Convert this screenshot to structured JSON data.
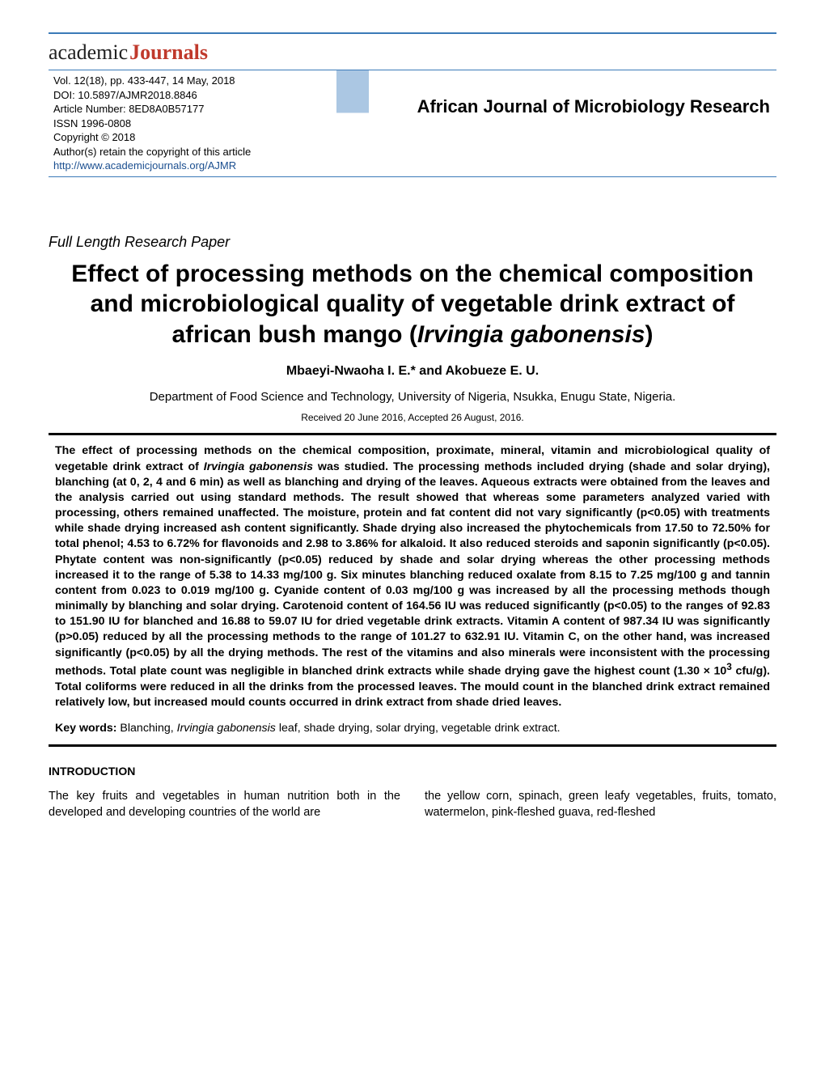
{
  "logo": {
    "part1": "academic",
    "part2": "Journals"
  },
  "header": {
    "meta": {
      "vol_line": "Vol. 12(18), pp. 433-447, 14 May, 2018",
      "doi_line": "DOI: 10.5897/AJMR2018.8846",
      "article_number": "Article Number: 8ED8A0B57177",
      "issn": "ISSN 1996-0808",
      "copyright": "Copyright © 2018",
      "authors_retain": "Author(s) retain the copyright of this article",
      "url": "http://www.academicjournals.org/AJMR"
    },
    "journal_title": "African Journal of Microbiology Research"
  },
  "article": {
    "type": "Full Length Research Paper",
    "title_plain_1": "Effect of processing methods on the chemical composition and microbiological quality of vegetable drink extract of african bush mango (",
    "title_italic": "Irvingia gabonensis",
    "title_plain_2": ")",
    "authors": "Mbaeyi-Nwaoha I. E.* and Akobueze E. U.",
    "affiliation": "Department of Food Science and Technology, University of Nigeria, Nsukka, Enugu State, Nigeria.",
    "dates": "Received 20 June 2016, Accepted 26 August, 2016."
  },
  "abstract": {
    "p1a": "The effect of processing methods on the chemical composition, proximate, mineral, vitamin and microbiological quality of vegetable drink extract of ",
    "p1_it1": "Irvingia gabonensis",
    "p1b": " was studied. The processing methods included drying (shade and solar drying), blanching (at 0, 2, 4 and 6 min) as well as blanching and drying of the leaves. Aqueous extracts were obtained from the leaves and the analysis carried out using standard methods. The result showed that whereas some parameters analyzed varied with processing, others remained unaffected. The moisture, protein and fat content did not vary significantly (p<0.05) with treatments while shade drying increased ash content significantly. Shade drying also increased the phytochemicals from 17.50 to 72.50% for total phenol; 4.53 to 6.72% for flavonoids and 2.98 to 3.86% for alkaloid. It also reduced steroids and saponin significantly (p<0.05). Phytate content was non-significantly (p<0.05) reduced by shade and solar drying whereas the other processing methods increased it to the range of 5.38 to 14.33 mg/100 g. Six minutes blanching reduced oxalate from 8.15 to 7.25 mg/100 g and tannin content from 0.023 to 0.019 mg/100 g. Cyanide content of 0.03 mg/100 g was increased by all the processing methods though minimally by blanching and solar drying. Carotenoid content of 164.56 IU was reduced significantly (p<0.05) to the ranges of 92.83 to 151.90 IU for blanched and 16.88 to 59.07 IU for dried vegetable drink extracts. Vitamin A content of 987.34 IU was significantly (p>0.05) reduced by all the processing methods to the range of 101.27 to 632.91 IU. Vitamin C, on the other hand, was increased significantly (p<0.05) by all the drying methods. The rest of the vitamins and also minerals were inconsistent with the processing methods. Total plate count was negligible in blanched drink extracts while shade drying gave the highest count (1.30 × 10",
    "p1_sup": "3",
    "p1c": " cfu/g). Total coliforms were reduced in all the drinks from the processed leaves. The mould count in the blanched drink extract remained relatively low, but increased mould counts occurred in drink extract from shade dried leaves."
  },
  "keywords": {
    "label": "Key words: ",
    "t1": "Blanching, ",
    "it": "Irvingia gabonensis",
    "t2": " leaf, shade drying, solar drying, vegetable drink extract."
  },
  "intro": {
    "heading": "INTRODUCTION",
    "col1": "The key fruits and vegetables in human nutrition both in the developed and developing countries of the  world  are",
    "col2": "the yellow corn, spinach, green leafy vegetables, fruits, tomato, watermelon, pink-fleshed guava, red-fleshed"
  },
  "colors": {
    "rule_blue": "#3a7ab8",
    "logo_red": "#c0392b",
    "link_blue": "#1a4e8f"
  }
}
